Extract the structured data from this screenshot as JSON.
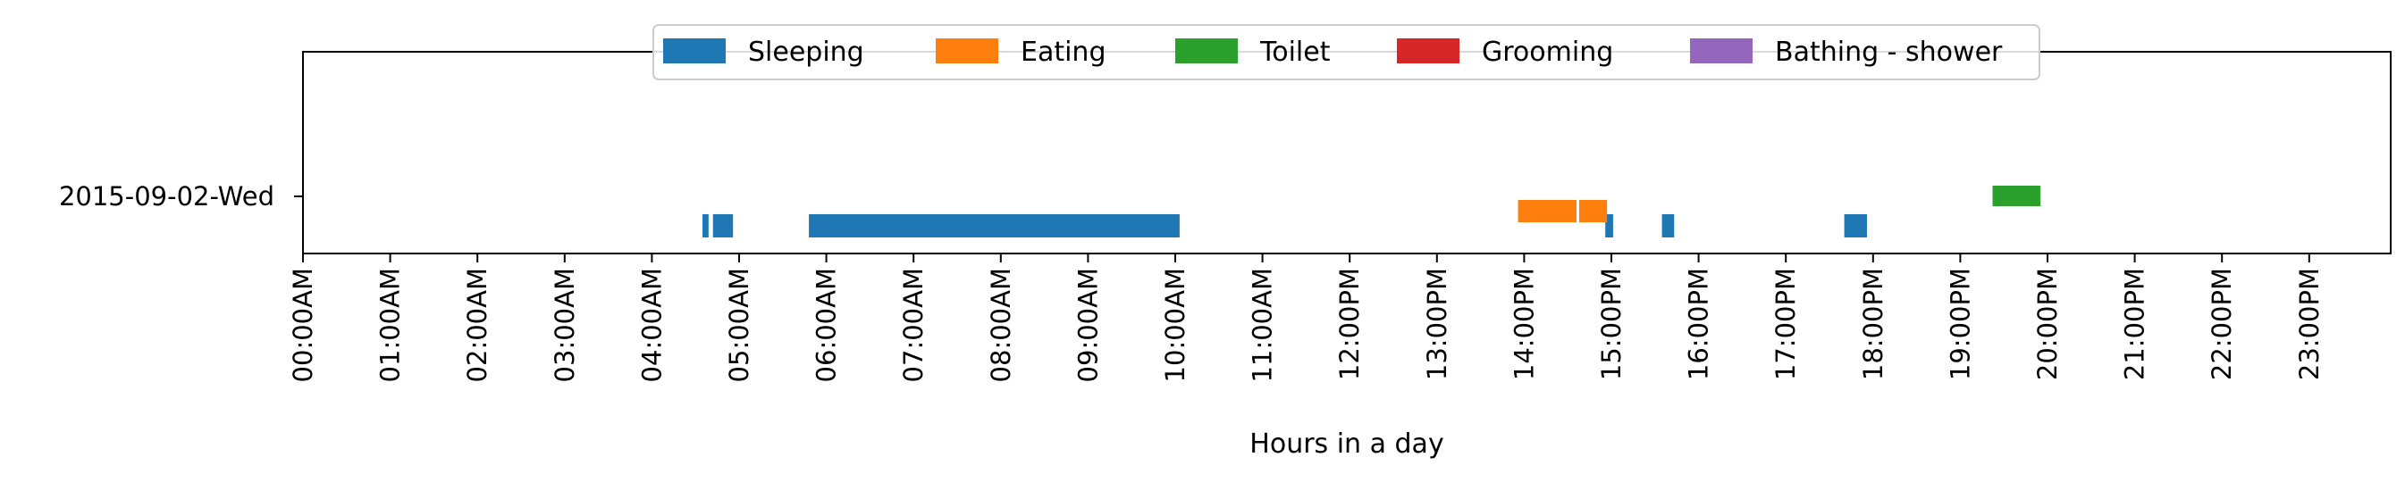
{
  "chart_data": {
    "type": "bar",
    "orientation": "horizontal-timeline",
    "title": "",
    "xlabel": "Hours in a day",
    "ylabel": "",
    "xlim": [
      0,
      24
    ],
    "y_categories": [
      "2015-09-02-Wed"
    ],
    "x_tick_labels": [
      "00:00AM",
      "01:00AM",
      "02:00AM",
      "03:00AM",
      "04:00AM",
      "05:00AM",
      "06:00AM",
      "07:00AM",
      "08:00AM",
      "09:00AM",
      "10:00AM",
      "11:00AM",
      "12:00PM",
      "13:00PM",
      "14:00PM",
      "15:00PM",
      "16:00PM",
      "17:00PM",
      "18:00PM",
      "19:00PM",
      "20:00PM",
      "21:00PM",
      "22:00PM",
      "23:00PM"
    ],
    "legend_position": "top-center",
    "grid": false,
    "series": [
      {
        "name": "Sleeping",
        "color": "#1f77b4",
        "level": "below",
        "intervals": [
          [
            4.58,
            4.65
          ],
          [
            4.7,
            4.93
          ],
          [
            5.8,
            10.05
          ],
          [
            14.93,
            15.02
          ],
          [
            15.58,
            15.72
          ],
          [
            17.67,
            17.93
          ]
        ]
      },
      {
        "name": "Eating",
        "color": "#ff7f0e",
        "level": "middle",
        "intervals": [
          [
            13.93,
            14.6
          ],
          [
            14.63,
            14.95
          ]
        ]
      },
      {
        "name": "Toilet",
        "color": "#2ca02c",
        "level": "above",
        "intervals": [
          [
            19.37,
            19.92
          ]
        ]
      },
      {
        "name": "Grooming",
        "color": "#d62728",
        "level": "middle",
        "intervals": []
      },
      {
        "name": "Bathing - shower",
        "color": "#9467bd",
        "level": "middle",
        "intervals": []
      }
    ]
  }
}
